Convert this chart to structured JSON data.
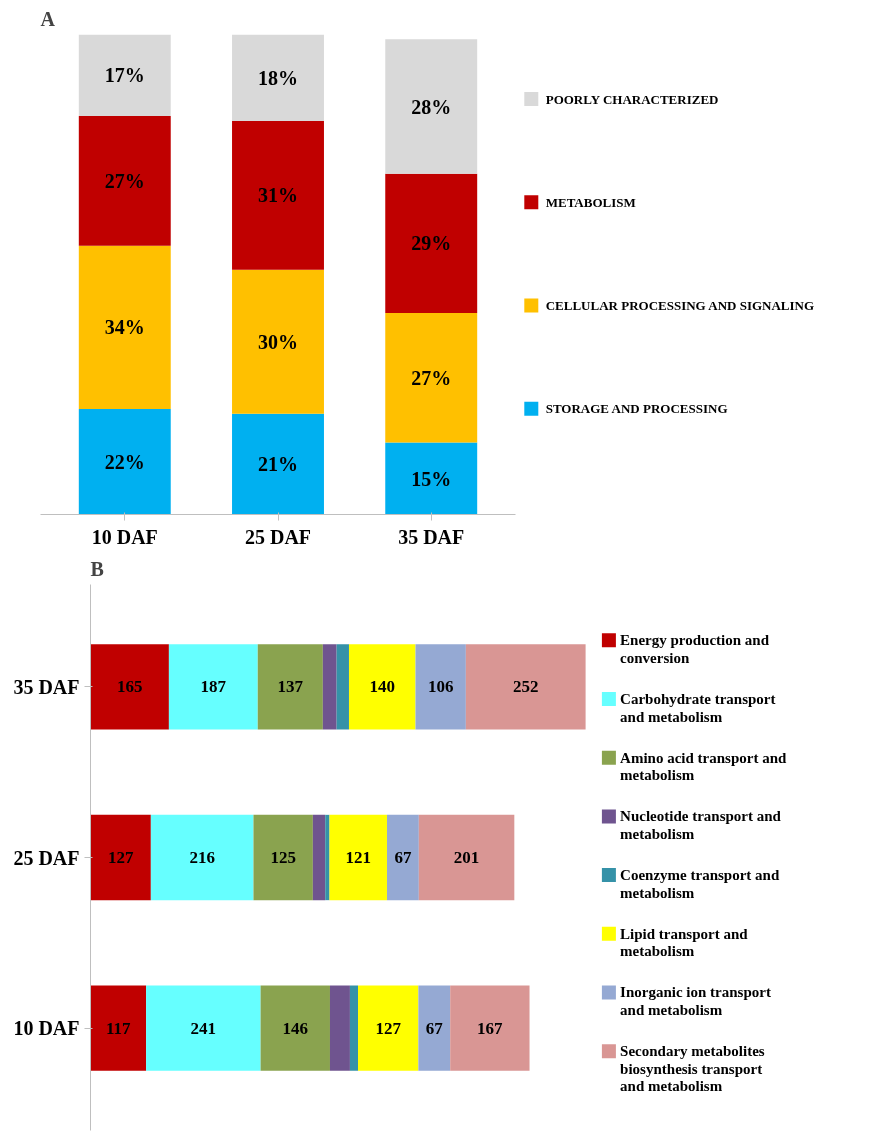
{
  "chart_data": [
    {
      "type": "bar",
      "title": "A",
      "stacked": true,
      "categories": [
        "10 DAF",
        "25 DAF",
        "35 DAF"
      ],
      "tick_labels": "x",
      "legend": "right",
      "series": [
        {
          "name": "STORAGE AND PROCESSING",
          "color": "#00b0f0",
          "values": [
            22,
            21,
            15
          ],
          "value_labels": [
            "22%",
            "21%",
            "15%"
          ]
        },
        {
          "name": "CELLULAR PROCESSING AND SIGNALING",
          "color": "#ffc000",
          "values": [
            34,
            30,
            27
          ],
          "value_labels": [
            "34%",
            "30%",
            "27%"
          ]
        },
        {
          "name": "METABOLISM",
          "color": "#c00000",
          "values": [
            27,
            31,
            29
          ],
          "value_labels": [
            "27%",
            "31%",
            "29%"
          ]
        },
        {
          "name": "POORLY CHARACTERIZED",
          "color": "#d9d9d9",
          "values": [
            17,
            18,
            28
          ],
          "value_labels": [
            "17%",
            "18%",
            "28%"
          ]
        }
      ]
    },
    {
      "type": "bar",
      "title": "B",
      "stacked": true,
      "orientation": "horizontal",
      "categories": [
        "35 DAF",
        "25 DAF",
        "10 DAF"
      ],
      "tick_labels": "y",
      "legend": "right",
      "series": [
        {
          "name": "Energy production and conversion",
          "color": "#c00000",
          "values": [
            165,
            127,
            117
          ],
          "value_labels": [
            "165",
            "127",
            "117"
          ]
        },
        {
          "name": "Carbohydrate transport and metabolism",
          "color": "#66ffff",
          "values": [
            187,
            216,
            241
          ],
          "value_labels": [
            "187",
            "216",
            "241"
          ]
        },
        {
          "name": "Amino acid transport and metabolism",
          "color": "#8aa34f",
          "values": [
            137,
            125,
            146
          ],
          "value_labels": [
            "137",
            "125",
            "146"
          ]
        },
        {
          "name": "Nucleotide transport and metabolism",
          "color": "#6f548f",
          "values": [
            29,
            26,
            42
          ],
          "value_labels": [
            null,
            null,
            null
          ]
        },
        {
          "name": "Coenzyme transport and metabolism",
          "color": "#3592a8",
          "values": [
            26,
            9,
            17
          ],
          "value_labels": [
            null,
            null,
            null
          ]
        },
        {
          "name": "Lipid transport and metabolism",
          "color": "#ffff00",
          "values": [
            140,
            121,
            127
          ],
          "value_labels": [
            "140",
            "121",
            "127"
          ]
        },
        {
          "name": "Inorganic ion transport and metabolism",
          "color": "#95a9d3",
          "values": [
            106,
            67,
            67
          ],
          "value_labels": [
            "106",
            "67",
            "67"
          ]
        },
        {
          "name": "Secondary metabolites biosynthesis transport and metabolism",
          "color": "#d99694",
          "values": [
            252,
            201,
            167
          ],
          "value_labels": [
            "252",
            "201",
            "167"
          ]
        }
      ]
    }
  ]
}
